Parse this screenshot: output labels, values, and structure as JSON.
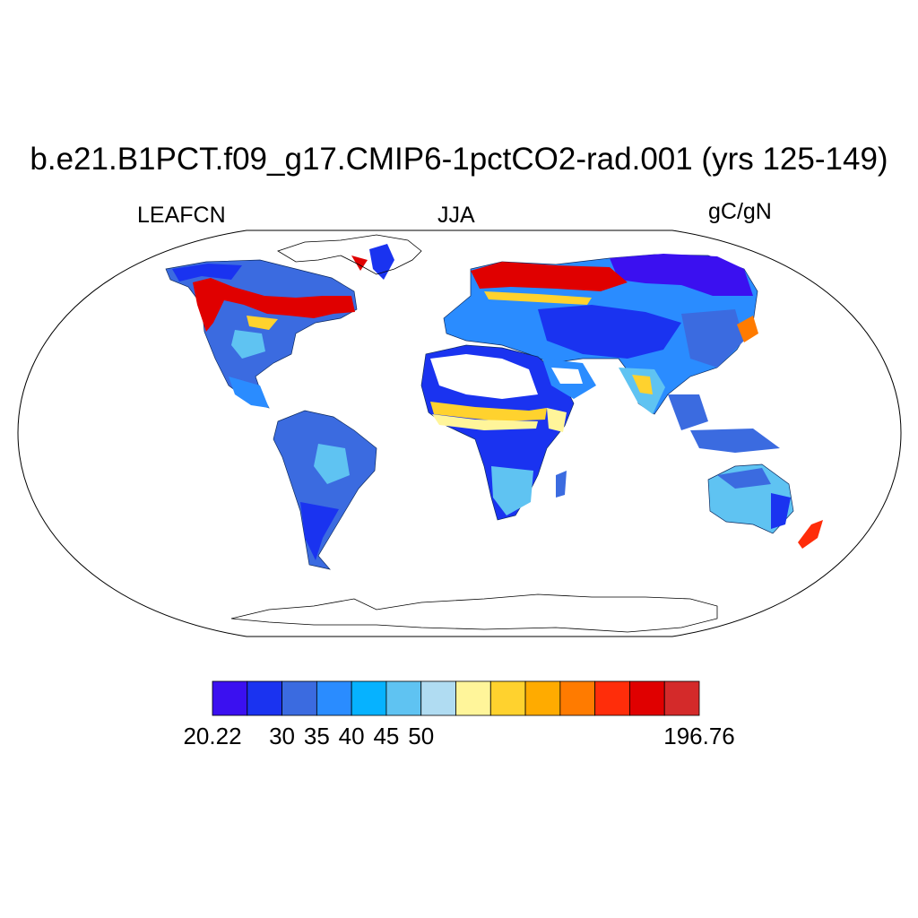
{
  "header": {
    "title": "b.e21.B1PCT.f09_g17.CMIP6-1pctCO2-rad.001 (yrs 125-149)",
    "variable": "LEAFCN",
    "season": "JJA",
    "units": "gC/gN"
  },
  "colorbar": {
    "colors": [
      "#3b10f0",
      "#1a33f0",
      "#3b6be0",
      "#2a8cff",
      "#06b2ff",
      "#5fc3f2",
      "#b0dcf2",
      "#fff59a",
      "#ffd22e",
      "#ffab00",
      "#ff7b00",
      "#ff2d0a",
      "#e00000",
      "#d42a2a"
    ],
    "labels": [
      {
        "text": "20.22",
        "boundary": 0
      },
      {
        "text": "30",
        "boundary": 2
      },
      {
        "text": "35",
        "boundary": 3
      },
      {
        "text": "40",
        "boundary": 4
      },
      {
        "text": "45",
        "boundary": 5
      },
      {
        "text": "50",
        "boundary": 6
      },
      {
        "text": "196.76",
        "boundary": 14
      }
    ]
  }
}
